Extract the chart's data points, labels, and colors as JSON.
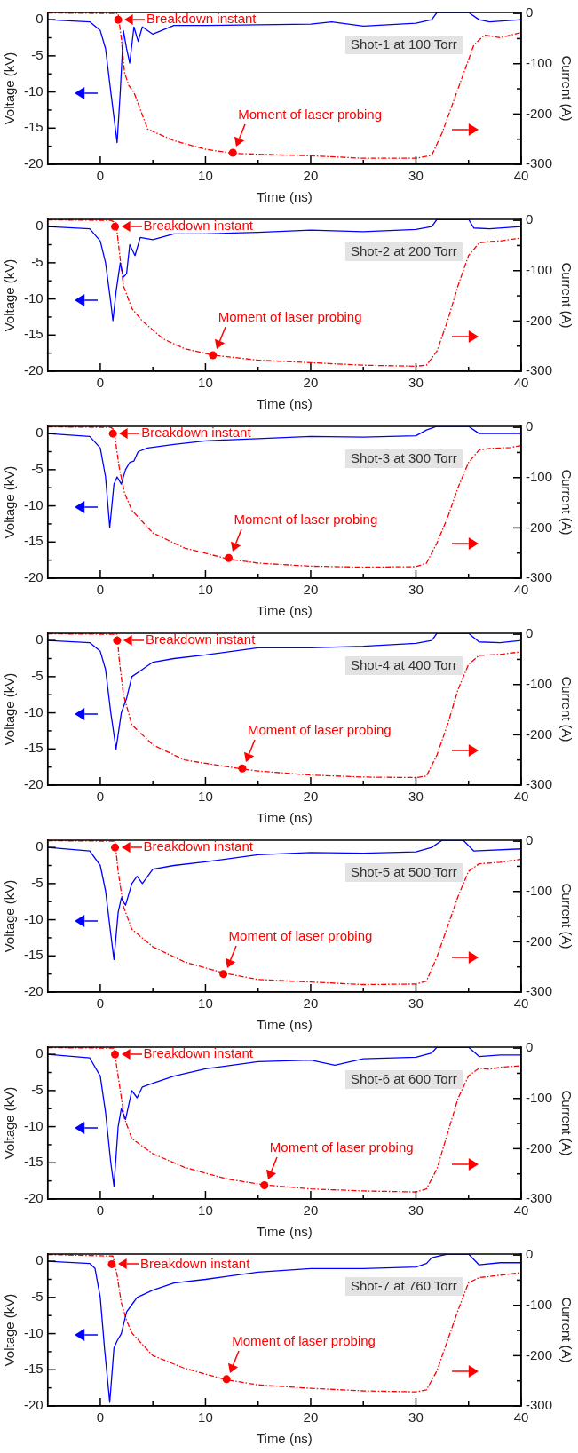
{
  "chart_data": [
    {
      "type": "line",
      "xlabel": "Time (ns)",
      "ylabel": "Voltage (kV)",
      "y2label": "Current (A)",
      "xlim": [
        -5,
        40
      ],
      "xticks": [
        0,
        {
          "value": 5,
          "label": null
        },
        10,
        {
          "value": 15,
          "label": null
        },
        20,
        {
          "value": 25,
          "label": null
        },
        30,
        {
          "value": 35,
          "label": null
        },
        40
      ],
      "ylim": [
        -20,
        1
      ],
      "yticks": [
        -20,
        {
          "value": -17.5,
          "label": null
        },
        -15,
        {
          "value": -12.5,
          "label": null
        },
        -10,
        {
          "value": -7.5,
          "label": null
        },
        -5,
        {
          "value": -2.5,
          "label": null
        },
        0
      ],
      "y2lim": [
        -300,
        2
      ],
      "y2ticks": [
        -300,
        {
          "value": -250,
          "label": null
        },
        -200,
        {
          "value": -150,
          "label": null
        },
        -100,
        {
          "value": -50,
          "label": null
        },
        0
      ],
      "annotations": [
        "Shot-1 at 100 Torr",
        {
          "text": "Breakdown instant",
          "x": 1.7,
          "y": 0
        },
        {
          "text": "Moment of laser probing",
          "x": 12.6,
          "y": -18.4
        }
      ],
      "series": [
        {
          "color": "#0000ff",
          "x": [
            -5,
            -1,
            0,
            0.5,
            1,
            1.6,
            1.9,
            2.2,
            2.5,
            2.8,
            3.2,
            3.6,
            4,
            5,
            7,
            10,
            15,
            20,
            22,
            25,
            30,
            31.5,
            32,
            35,
            36,
            37,
            40
          ],
          "values": [
            0,
            -0.3,
            -1.5,
            -4,
            -10,
            -17,
            -10,
            -1.5,
            -4,
            -6,
            -1,
            -3,
            -1,
            -2,
            -0.8,
            -0.8,
            -0.7,
            -0.6,
            -0.3,
            -0.9,
            -0.5,
            0,
            1,
            1,
            0,
            -0.3,
            0
          ]
        },
        {
          "color": "#ff0000",
          "axis": "y2",
          "line_style": "dashed",
          "x": [
            -5,
            1,
            1.7,
            2,
            2.3,
            2.7,
            3.2,
            4.5,
            7,
            10,
            12.6,
            15,
            20,
            25,
            30,
            31.5,
            32.5,
            34,
            35.5,
            36.5,
            38,
            40
          ],
          "values": [
            1,
            0,
            0,
            -50,
            -117,
            -143,
            -157,
            -230,
            -253,
            -270,
            -278,
            -280,
            -283,
            -288,
            -288,
            -282,
            -237,
            -150,
            -63,
            -43,
            -48,
            -38
          ]
        }
      ]
    },
    {
      "type": "line",
      "xlabel": "Time (ns)",
      "ylabel": "Voltage (kV)",
      "y2label": "Current (A)",
      "xlim": [
        -5,
        40
      ],
      "xticks": [
        0,
        {
          "value": 5,
          "label": null
        },
        10,
        {
          "value": 15,
          "label": null
        },
        20,
        {
          "value": 25,
          "label": null
        },
        30,
        {
          "value": 35,
          "label": null
        },
        40
      ],
      "ylim": [
        -20,
        1
      ],
      "yticks": [
        -20,
        {
          "value": -17.5,
          "label": null
        },
        -15,
        {
          "value": -12.5,
          "label": null
        },
        -10,
        {
          "value": -7.5,
          "label": null
        },
        -5,
        {
          "value": -2.5,
          "label": null
        },
        0
      ],
      "y2lim": [
        -300,
        2
      ],
      "y2ticks": [
        -300,
        {
          "value": -250,
          "label": null
        },
        -200,
        {
          "value": -150,
          "label": null
        },
        -100,
        {
          "value": -50,
          "label": null
        },
        0
      ],
      "annotations": [
        "Shot-2 at 200 Torr",
        {
          "text": "Breakdown instant",
          "x": 1.4,
          "y": 0
        },
        {
          "text": "Moment of laser probing",
          "x": 10.7,
          "y": -17.8
        }
      ],
      "series": [
        {
          "color": "#0000ff",
          "x": [
            -5,
            -1,
            0,
            0.5,
            1,
            1.2,
            1.5,
            1.9,
            2.2,
            2.5,
            2.8,
            3.3,
            3.8,
            5,
            7,
            10,
            15,
            20,
            25,
            30,
            31.5,
            32,
            35,
            35.5,
            37,
            40
          ],
          "values": [
            0,
            -0.3,
            -2,
            -5,
            -10.5,
            -13,
            -9,
            -5,
            -7,
            -6.5,
            -2.5,
            -4,
            -1.5,
            -1.8,
            -1,
            -1,
            -0.8,
            -0.5,
            -0.7,
            -0.4,
            0,
            1,
            1,
            -0.2,
            -0.3,
            0
          ]
        },
        {
          "color": "#ff0000",
          "axis": "y2",
          "line_style": "dashed",
          "x": [
            -5,
            1,
            1.5,
            1.8,
            2.2,
            3,
            4,
            6,
            8,
            10.7,
            15,
            20,
            25,
            30,
            31,
            32,
            33,
            34,
            35,
            36,
            37,
            38,
            40
          ],
          "values": [
            1,
            0,
            -5,
            -60,
            -130,
            -175,
            -200,
            -236,
            -255,
            -268,
            -278,
            -283,
            -288,
            -290,
            -288,
            -260,
            -200,
            -130,
            -70,
            -45,
            -42,
            -41,
            -35
          ]
        }
      ]
    },
    {
      "type": "line",
      "xlabel": "Time (ns)",
      "ylabel": "Voltage (kV)",
      "y2label": "Current (A)",
      "xlim": [
        -5,
        40
      ],
      "xticks": [
        0,
        {
          "value": 5,
          "label": null
        },
        10,
        {
          "value": 15,
          "label": null
        },
        20,
        {
          "value": 25,
          "label": null
        },
        30,
        {
          "value": 35,
          "label": null
        },
        40
      ],
      "ylim": [
        -20,
        1
      ],
      "yticks": [
        -20,
        {
          "value": -17.5,
          "label": null
        },
        -15,
        {
          "value": -12.5,
          "label": null
        },
        -10,
        {
          "value": -7.5,
          "label": null
        },
        -5,
        {
          "value": -2.5,
          "label": null
        },
        0
      ],
      "y2lim": [
        -300,
        2
      ],
      "y2ticks": [
        -300,
        {
          "value": -250,
          "label": null
        },
        -200,
        {
          "value": -150,
          "label": null
        },
        -100,
        {
          "value": -50,
          "label": null
        },
        0
      ],
      "annotations": [
        "Shot-3 at 300 Torr",
        {
          "text": "Breakdown instant",
          "x": 1.2,
          "y": 0
        },
        {
          "text": "Moment of laser probing",
          "x": 12.2,
          "y": -17.2
        }
      ],
      "series": [
        {
          "color": "#0000ff",
          "x": [
            -5,
            -1,
            0,
            0.5,
            0.9,
            1.3,
            1.6,
            2,
            2.4,
            2.8,
            3.2,
            3.6,
            4.5,
            7,
            10,
            15,
            20,
            25,
            30,
            31,
            32,
            35,
            36,
            40
          ],
          "values": [
            0,
            -0.4,
            -2,
            -6,
            -13,
            -7,
            -6,
            -7,
            -5,
            -4,
            -3.8,
            -2.5,
            -2,
            -1.5,
            -1,
            -0.7,
            -0.4,
            -0.5,
            -0.3,
            0.5,
            1,
            1,
            0,
            0
          ]
        },
        {
          "color": "#ff0000",
          "axis": "y2",
          "line_style": "dashed",
          "x": [
            -5,
            1,
            1.3,
            1.8,
            2.3,
            3,
            5,
            8,
            12.2,
            15,
            20,
            25,
            30,
            31,
            32,
            33,
            34,
            35,
            36,
            37,
            39,
            40
          ],
          "values": [
            1,
            0,
            -5,
            -80,
            -130,
            -165,
            -210,
            -240,
            -262,
            -270,
            -276,
            -278,
            -277,
            -270,
            -230,
            -180,
            -120,
            -70,
            -45,
            -42,
            -40,
            -36
          ]
        }
      ]
    },
    {
      "type": "line",
      "xlabel": "Time (ns)",
      "ylabel": "Voltage (kV)",
      "y2label": "Current (A)",
      "xlim": [
        -5,
        40
      ],
      "xticks": [
        0,
        {
          "value": 5,
          "label": null
        },
        10,
        {
          "value": 15,
          "label": null
        },
        20,
        {
          "value": 25,
          "label": null
        },
        30,
        {
          "value": 35,
          "label": null
        },
        40
      ],
      "ylim": [
        -20,
        1
      ],
      "yticks": [
        -20,
        {
          "value": -17.5,
          "label": null
        },
        -15,
        {
          "value": -12.5,
          "label": null
        },
        -10,
        {
          "value": -7.5,
          "label": null
        },
        -5,
        {
          "value": -2.5,
          "label": null
        },
        0
      ],
      "y2lim": [
        -300,
        2
      ],
      "y2ticks": [
        -300,
        {
          "value": -250,
          "label": null
        },
        -200,
        {
          "value": -150,
          "label": null
        },
        -100,
        {
          "value": -50,
          "label": null
        },
        0
      ],
      "annotations": [
        "Shot-4 at 400 Torr",
        {
          "text": "Breakdown instant",
          "x": 1.6,
          "y": 0
        },
        {
          "text": "Moment of laser probing",
          "x": 13.5,
          "y": -17.7
        }
      ],
      "series": [
        {
          "color": "#0000ff",
          "x": [
            -5,
            -1,
            0,
            0.5,
            1,
            1.5,
            2,
            2.5,
            3,
            4,
            5,
            7,
            10,
            15,
            20,
            25,
            30,
            31.5,
            32,
            35,
            36,
            38,
            40
          ],
          "values": [
            0,
            -0.3,
            -1.5,
            -4,
            -10,
            -15,
            -10,
            -8,
            -5,
            -4,
            -3,
            -2.5,
            -2,
            -1,
            -1,
            -0.8,
            -0.4,
            0,
            1,
            1,
            -0.2,
            -0.3,
            0
          ]
        },
        {
          "color": "#ff0000",
          "axis": "y2",
          "line_style": "dashed",
          "x": [
            -5,
            1.6,
            1.8,
            2.2,
            3,
            5,
            8,
            13.5,
            15,
            20,
            25,
            30,
            31,
            32,
            33,
            34,
            35,
            36,
            38,
            40
          ],
          "values": [
            1,
            0,
            -50,
            -120,
            -180,
            -220,
            -250,
            -268,
            -272,
            -280,
            -284,
            -285,
            -282,
            -240,
            -180,
            -110,
            -60,
            -42,
            -40,
            -35
          ]
        }
      ]
    },
    {
      "type": "line",
      "xlabel": "Time (ns)",
      "ylabel": "Voltage (kV)",
      "y2label": "Current (A)",
      "xlim": [
        -5,
        40
      ],
      "xticks": [
        0,
        {
          "value": 5,
          "label": null
        },
        10,
        {
          "value": 15,
          "label": null
        },
        20,
        {
          "value": 25,
          "label": null
        },
        30,
        {
          "value": 35,
          "label": null
        },
        40
      ],
      "ylim": [
        -20,
        1
      ],
      "yticks": [
        -20,
        {
          "value": -17.5,
          "label": null
        },
        -15,
        {
          "value": -12.5,
          "label": null
        },
        -10,
        {
          "value": -7.5,
          "label": null
        },
        -5,
        {
          "value": -2.5,
          "label": null
        },
        0
      ],
      "y2lim": [
        -300,
        2
      ],
      "y2ticks": [
        -300,
        {
          "value": -250,
          "label": null
        },
        -200,
        {
          "value": -150,
          "label": null
        },
        -100,
        {
          "value": -50,
          "label": null
        },
        0
      ],
      "annotations": [
        "Shot-5 at 500 Torr",
        {
          "text": "Breakdown instant",
          "x": 1.4,
          "y": 0
        },
        {
          "text": "Moment of laser probing",
          "x": 11.7,
          "y": -17.5
        }
      ],
      "series": [
        {
          "color": "#0000ff",
          "x": [
            -5,
            -1,
            0,
            0.5,
            1,
            1.3,
            1.7,
            2,
            2.4,
            3,
            3.5,
            4,
            5,
            7,
            10,
            15,
            20,
            25,
            30,
            31.5,
            32.5,
            34.5,
            35.5,
            40
          ],
          "values": [
            0,
            -0.5,
            -2.5,
            -6,
            -12,
            -15.5,
            -9,
            -7,
            -8,
            -5,
            -4,
            -5,
            -3,
            -2.5,
            -2,
            -1,
            -0.7,
            -0.8,
            -0.6,
            0,
            1,
            1,
            -0.5,
            -0.2
          ]
        },
        {
          "color": "#ff0000",
          "axis": "y2",
          "line_style": "dashed",
          "x": [
            -5,
            1.4,
            1.7,
            2.2,
            3,
            5,
            8,
            11.7,
            15,
            20,
            25,
            30,
            31,
            32,
            33,
            34,
            35,
            36,
            38,
            40
          ],
          "values": [
            1,
            0,
            -60,
            -130,
            -175,
            -210,
            -240,
            -262,
            -275,
            -280,
            -285,
            -284,
            -278,
            -230,
            -170,
            -110,
            -60,
            -45,
            -42,
            -36
          ]
        }
      ]
    },
    {
      "type": "line",
      "xlabel": "Time (ns)",
      "ylabel": "Voltage (kV)",
      "y2label": "Current (A)",
      "xlim": [
        -5,
        40
      ],
      "xticks": [
        0,
        {
          "value": 5,
          "label": null
        },
        10,
        {
          "value": 15,
          "label": null
        },
        20,
        {
          "value": 25,
          "label": null
        },
        30,
        {
          "value": 35,
          "label": null
        },
        40
      ],
      "ylim": [
        -20,
        1
      ],
      "yticks": [
        -20,
        {
          "value": -17.5,
          "label": null
        },
        -15,
        {
          "value": -12.5,
          "label": null
        },
        -10,
        {
          "value": -7.5,
          "label": null
        },
        -5,
        {
          "value": -2.5,
          "label": null
        },
        0
      ],
      "y2lim": [
        -300,
        2
      ],
      "y2ticks": [
        -300,
        {
          "value": -250,
          "label": null
        },
        -200,
        {
          "value": -150,
          "label": null
        },
        -100,
        {
          "value": -50,
          "label": null
        },
        0
      ],
      "annotations": [
        "Shot-6 at 600 Torr",
        {
          "text": "Breakdown instant",
          "x": 1.4,
          "y": 0
        },
        {
          "text": "Moment of laser probing",
          "x": 15.6,
          "y": -18.1
        }
      ],
      "series": [
        {
          "color": "#0000ff",
          "x": [
            -5,
            -1,
            0,
            0.5,
            1,
            1.3,
            1.7,
            2,
            2.4,
            3,
            3.5,
            4,
            5,
            7,
            10,
            15,
            20,
            22.3,
            25,
            30,
            31.5,
            32,
            35,
            36,
            38,
            40
          ],
          "values": [
            0,
            -0.5,
            -3,
            -8,
            -15,
            -18.2,
            -10,
            -7.5,
            -9,
            -5,
            -6,
            -4.5,
            -4,
            -3,
            -2,
            -1,
            -0.8,
            -1.5,
            -0.6,
            -0.4,
            0.2,
            1,
            1,
            -0.3,
            -0.1,
            -0.1
          ]
        },
        {
          "color": "#ff0000",
          "axis": "y2",
          "line_style": "dashed",
          "x": [
            -5,
            1.3,
            1.8,
            2.3,
            3,
            5,
            8,
            12,
            15.6,
            20,
            25,
            30,
            31,
            32,
            33,
            34,
            35,
            36,
            37,
            38,
            40
          ],
          "values": [
            1,
            0,
            -70,
            -140,
            -180,
            -210,
            -237,
            -260,
            -272,
            -280,
            -284,
            -286,
            -280,
            -240,
            -170,
            -100,
            -55,
            -40,
            -42,
            -38,
            -35
          ]
        }
      ]
    },
    {
      "type": "line",
      "xlabel": "Time (ns)",
      "ylabel": "Voltage (kV)",
      "y2label": "Current (A)",
      "xlim": [
        -5,
        40
      ],
      "xticks": [
        0,
        {
          "value": 5,
          "label": null
        },
        10,
        {
          "value": 15,
          "label": null
        },
        20,
        {
          "value": 25,
          "label": null
        },
        30,
        {
          "value": 35,
          "label": null
        },
        40
      ],
      "ylim": [
        -20,
        1
      ],
      "yticks": [
        -20,
        {
          "value": -17.5,
          "label": null
        },
        -15,
        {
          "value": -12.5,
          "label": null
        },
        -10,
        {
          "value": -7.5,
          "label": null
        },
        -5,
        {
          "value": -2.5,
          "label": null
        },
        0
      ],
      "y2lim": [
        -300,
        2
      ],
      "y2ticks": [
        -300,
        {
          "value": -250,
          "label": null
        },
        -200,
        {
          "value": -150,
          "label": null
        },
        -100,
        {
          "value": -50,
          "label": null
        },
        0
      ],
      "annotations": [
        "Shot-7 at 760 Torr",
        {
          "text": "Breakdown instant",
          "x": 1.1,
          "y": -0.4
        },
        {
          "text": "Moment of laser probing",
          "x": 12,
          "y": -16.3
        }
      ],
      "series": [
        {
          "color": "#0000ff",
          "x": [
            -5,
            -1,
            -0.5,
            0,
            0.4,
            0.9,
            1.3,
            1.6,
            2,
            2.5,
            3,
            3.5,
            5,
            7,
            10,
            15,
            20,
            25,
            30,
            31,
            31.5,
            33,
            35,
            36,
            38,
            40
          ],
          "values": [
            0,
            -0.3,
            -1,
            -5,
            -12,
            -19.5,
            -12,
            -11,
            -10,
            -7,
            -6,
            -5,
            -4,
            -3,
            -2.5,
            -1.5,
            -1,
            -1,
            -0.8,
            -0.3,
            0.5,
            1,
            1,
            -0.5,
            -0.2,
            -0.2
          ]
        },
        {
          "color": "#ff0000",
          "axis": "y2",
          "line_style": "dashed",
          "x": [
            -5,
            1.2,
            1.6,
            2,
            2.5,
            3,
            5,
            8,
            12,
            15,
            20,
            25,
            30,
            31,
            32,
            33,
            34,
            35,
            36,
            38,
            40
          ],
          "values": [
            1,
            -2,
            -40,
            -95,
            -130,
            -155,
            -200,
            -225,
            -248,
            -258,
            -265,
            -270,
            -272,
            -268,
            -230,
            -170,
            -110,
            -55,
            -45,
            -40,
            -35
          ]
        }
      ]
    }
  ]
}
